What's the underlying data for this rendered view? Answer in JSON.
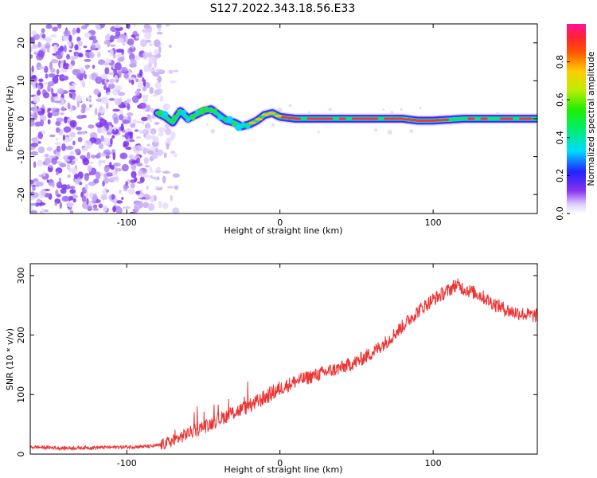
{
  "title": "S127.2022.343.18.56.E33",
  "chart_data": [
    {
      "type": "heatmap",
      "xlabel": "Height of straight line (km)",
      "ylabel": "Frequency (Hz)",
      "xlim": [
        -163,
        168
      ],
      "ylim": [
        -25,
        25
      ],
      "xticks": [
        -100,
        0,
        100
      ],
      "yticks": [
        -20,
        -10,
        0,
        10,
        20
      ],
      "colorbar": {
        "label": "Normalized spectral amplitude",
        "range": [
          0.0,
          1.0
        ],
        "ticks": [
          "0.0",
          "0.2",
          "0.4",
          "0.6",
          "0.8"
        ],
        "colormap": "rainbow (white-violet-blue-cyan-green-yellow-red-magenta)"
      },
      "noise_region_x": [
        -163,
        -78
      ],
      "ridge": {
        "description": "spectral peak frequency versus height",
        "x": [
          -80,
          -75,
          -70,
          -65,
          -60,
          -55,
          -50,
          -45,
          -40,
          -35,
          -30,
          -25,
          -20,
          -15,
          -10,
          -5,
          0,
          10,
          20,
          40,
          60,
          80,
          90,
          100,
          120,
          140,
          168
        ],
        "y": [
          1.5,
          0.5,
          -1,
          2,
          0,
          1,
          2,
          2.5,
          1,
          -0.5,
          -1,
          -2,
          -1.5,
          -0.5,
          1,
          1.5,
          0.5,
          0,
          0,
          0,
          0,
          0,
          -0.5,
          -0.5,
          0,
          0,
          0
        ]
      }
    },
    {
      "type": "line",
      "xlabel": "Height of straight line (km)",
      "ylabel": "SNR (10 * v/v)",
      "xlim": [
        -163,
        168
      ],
      "ylim": [
        0,
        320
      ],
      "xticks": [
        -100,
        0,
        100
      ],
      "yticks": [
        0,
        100,
        200,
        300
      ],
      "color": "#ee3333",
      "series": [
        {
          "x": [
            -163,
            -140,
            -120,
            -100,
            -85,
            -78,
            -70,
            -60,
            -50,
            -40,
            -30,
            -20,
            -10,
            0,
            10,
            20,
            30,
            40,
            50,
            60,
            70,
            80,
            90,
            100,
            110,
            115,
            120,
            130,
            140,
            150,
            160,
            168
          ],
          "values": [
            12,
            10,
            11,
            12,
            13,
            15,
            22,
            35,
            45,
            58,
            70,
            80,
            95,
            110,
            122,
            130,
            138,
            145,
            155,
            170,
            190,
            215,
            240,
            260,
            275,
            285,
            278,
            268,
            252,
            240,
            235,
            232
          ]
        }
      ]
    }
  ]
}
